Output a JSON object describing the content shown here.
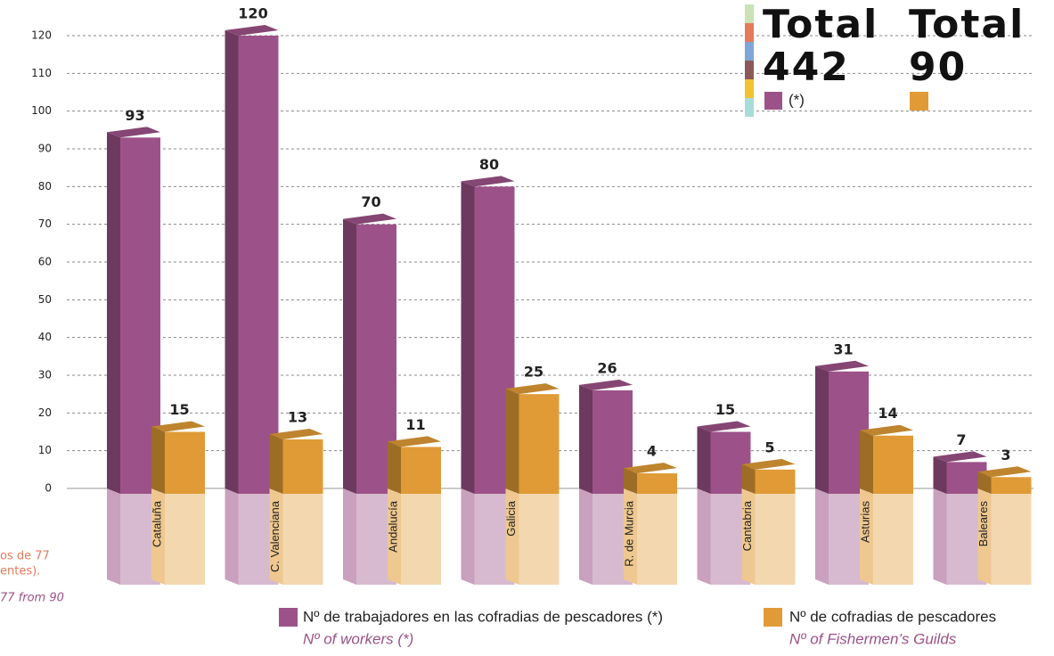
{
  "chart_data": {
    "type": "bar",
    "categories": [
      "Cataluña",
      "C. Valenciana",
      "Andalucía",
      "Galicia",
      "R. de Murcia",
      "Cantabria",
      "Asturias",
      "Baleares"
    ],
    "series": [
      {
        "name": "Nº de trabajadores en las cofradias de pescadores (*)",
        "subtitle": "Nº of workers (*)",
        "color": "#9c5288",
        "values": [
          93,
          120,
          70,
          80,
          26,
          15,
          31,
          7
        ]
      },
      {
        "name": "Nº de cofradias de pescadores",
        "subtitle": "Nº of Fishermen’s Guilds",
        "color": "#e09b36",
        "values": [
          15,
          13,
          11,
          25,
          4,
          5,
          14,
          3
        ]
      }
    ],
    "ylim": [
      0,
      120
    ],
    "yticks": [
      0,
      10,
      20,
      30,
      40,
      50,
      60,
      70,
      80,
      90,
      100,
      110,
      120
    ],
    "grid": true,
    "totals": [
      {
        "label": "Total",
        "value": 442,
        "note": "(*)"
      },
      {
        "label": "Total",
        "value": 90
      }
    ],
    "notes": [
      "os de 77",
      "entes).",
      "77 from 90"
    ]
  }
}
